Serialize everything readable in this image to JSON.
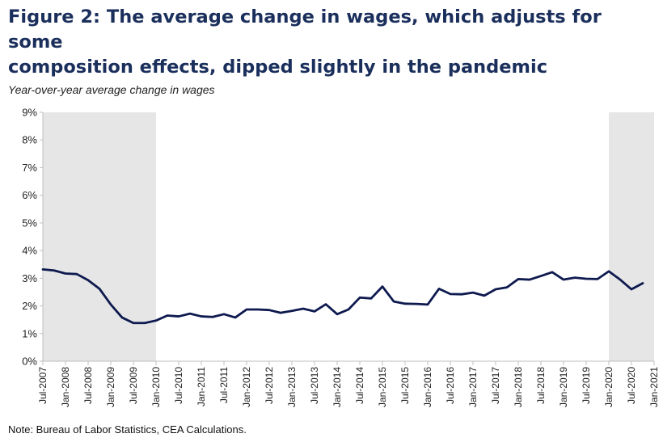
{
  "title_line1": "Figure 2: The average change in wages, which adjusts for some",
  "title_line2": "composition effects, dipped slightly in the pandemic",
  "note": "Note: Bureau of Labor Statistics, CEA Calculations.",
  "colors": {
    "line": "#0e1a4f",
    "shade": "#e6e6e6",
    "title": "#1b2f5c"
  },
  "chart_data": {
    "type": "line",
    "title": "Figure 2: The average change in wages, which adjusts for some composition effects, dipped slightly in the pandemic",
    "ylabel": "Year-over-year average change in wages",
    "xlabel": "",
    "ylim": [
      0,
      9
    ],
    "y_ticks": [
      "0%",
      "1%",
      "2%",
      "3%",
      "4%",
      "5%",
      "6%",
      "7%",
      "8%",
      "9%"
    ],
    "x_ticks": [
      "Jul-2007",
      "Jan-2008",
      "Jul-2008",
      "Jan-2009",
      "Jul-2009",
      "Jan-2010",
      "Jul-2010",
      "Jan-2011",
      "Jul-2011",
      "Jan-2012",
      "Jul-2012",
      "Jan-2013",
      "Jul-2013",
      "Jan-2014",
      "Jul-2014",
      "Jan-2015",
      "Jul-2015",
      "Jan-2016",
      "Jul-2016",
      "Jan-2017",
      "Jul-2017",
      "Jan-2018",
      "Jul-2018",
      "Jan-2019",
      "Jul-2019",
      "Jan-2020",
      "Jul-2020",
      "Jan-2021"
    ],
    "grid": false,
    "recession_shading": [
      [
        "Jul-2007",
        "Jan-2010"
      ],
      [
        "Jan-2020",
        "Jan-2021"
      ]
    ],
    "series": [
      {
        "name": "",
        "x": [
          "Jul-2007",
          "Oct-2007",
          "Jan-2008",
          "Apr-2008",
          "Jul-2008",
          "Oct-2008",
          "Jan-2009",
          "Apr-2009",
          "Jul-2009",
          "Oct-2009",
          "Jan-2010",
          "Apr-2010",
          "Jul-2010",
          "Oct-2010",
          "Jan-2011",
          "Apr-2011",
          "Jul-2011",
          "Oct-2011",
          "Jan-2012",
          "Apr-2012",
          "Jul-2012",
          "Oct-2012",
          "Jan-2013",
          "Apr-2013",
          "Jul-2013",
          "Oct-2013",
          "Jan-2014",
          "Apr-2014",
          "Jul-2014",
          "Oct-2014",
          "Jan-2015",
          "Apr-2015",
          "Jul-2015",
          "Oct-2015",
          "Jan-2016",
          "Apr-2016",
          "Jul-2016",
          "Oct-2016",
          "Jan-2017",
          "Apr-2017",
          "Jul-2017",
          "Oct-2017",
          "Jan-2018",
          "Apr-2018",
          "Jul-2018",
          "Oct-2018",
          "Jan-2019",
          "Apr-2019",
          "Jul-2019",
          "Oct-2019",
          "Jan-2020",
          "Apr-2020",
          "Jul-2020",
          "Oct-2020"
        ],
        "values": [
          3.32,
          3.28,
          3.17,
          3.15,
          2.93,
          2.62,
          2.05,
          1.58,
          1.38,
          1.38,
          1.47,
          1.65,
          1.62,
          1.72,
          1.62,
          1.6,
          1.7,
          1.58,
          1.87,
          1.87,
          1.85,
          1.75,
          1.82,
          1.9,
          1.8,
          2.06,
          1.7,
          1.87,
          2.3,
          2.27,
          2.7,
          2.16,
          2.08,
          2.07,
          2.05,
          2.62,
          2.43,
          2.42,
          2.48,
          2.37,
          2.6,
          2.67,
          2.97,
          2.95,
          3.08,
          3.22,
          2.95,
          3.02,
          2.98,
          2.97,
          3.25,
          2.95,
          2.6,
          2.82
        ]
      }
    ]
  }
}
